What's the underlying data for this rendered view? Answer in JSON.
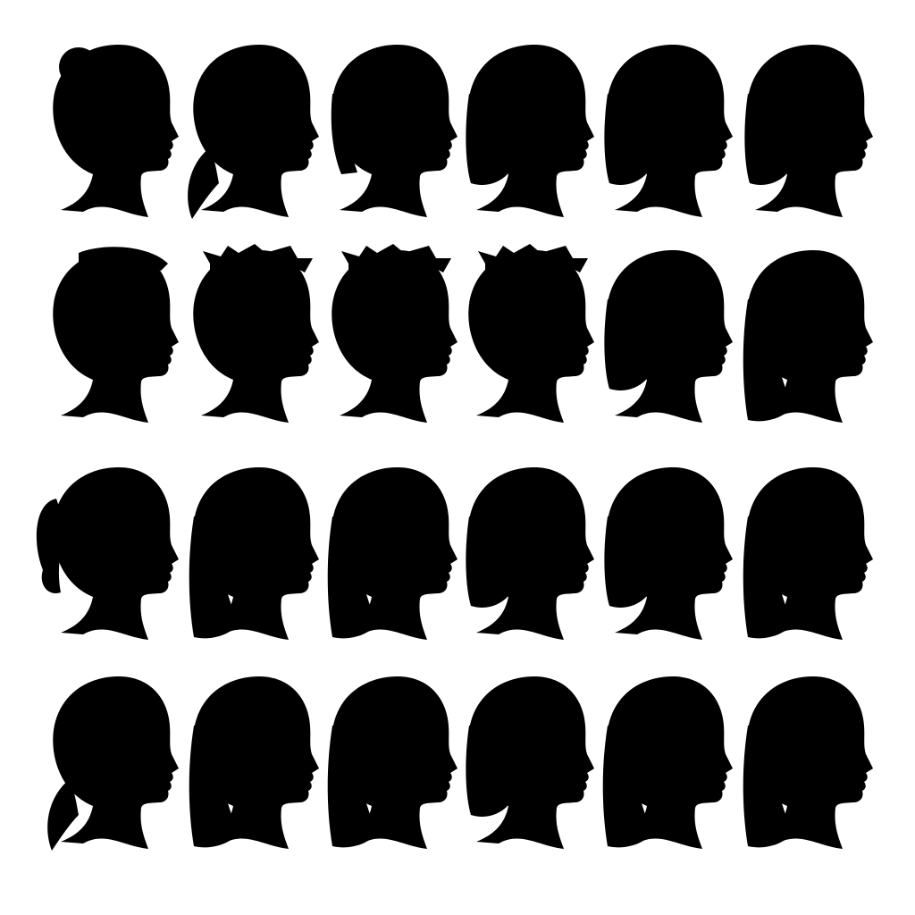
{
  "background_color": "#ffffff",
  "silhouette_color": "#000000",
  "grid": {
    "rows": 4,
    "columns": 6
  },
  "silhouettes": [
    {
      "hairstyle": "bun"
    },
    {
      "hairstyle": "low-ponytail"
    },
    {
      "hairstyle": "short-bob"
    },
    {
      "hairstyle": "bob"
    },
    {
      "hairstyle": "bob"
    },
    {
      "hairstyle": "bob"
    },
    {
      "hairstyle": "short"
    },
    {
      "hairstyle": "short-spiky"
    },
    {
      "hairstyle": "short-spiky"
    },
    {
      "hairstyle": "short-spiky"
    },
    {
      "hairstyle": "bob"
    },
    {
      "hairstyle": "long"
    },
    {
      "hairstyle": "ponytail"
    },
    {
      "hairstyle": "long"
    },
    {
      "hairstyle": "long"
    },
    {
      "hairstyle": "bob"
    },
    {
      "hairstyle": "bob"
    },
    {
      "hairstyle": "long"
    },
    {
      "hairstyle": "low-ponytail"
    },
    {
      "hairstyle": "long"
    },
    {
      "hairstyle": "long"
    },
    {
      "hairstyle": "bob"
    },
    {
      "hairstyle": "long"
    },
    {
      "hairstyle": "long"
    }
  ]
}
